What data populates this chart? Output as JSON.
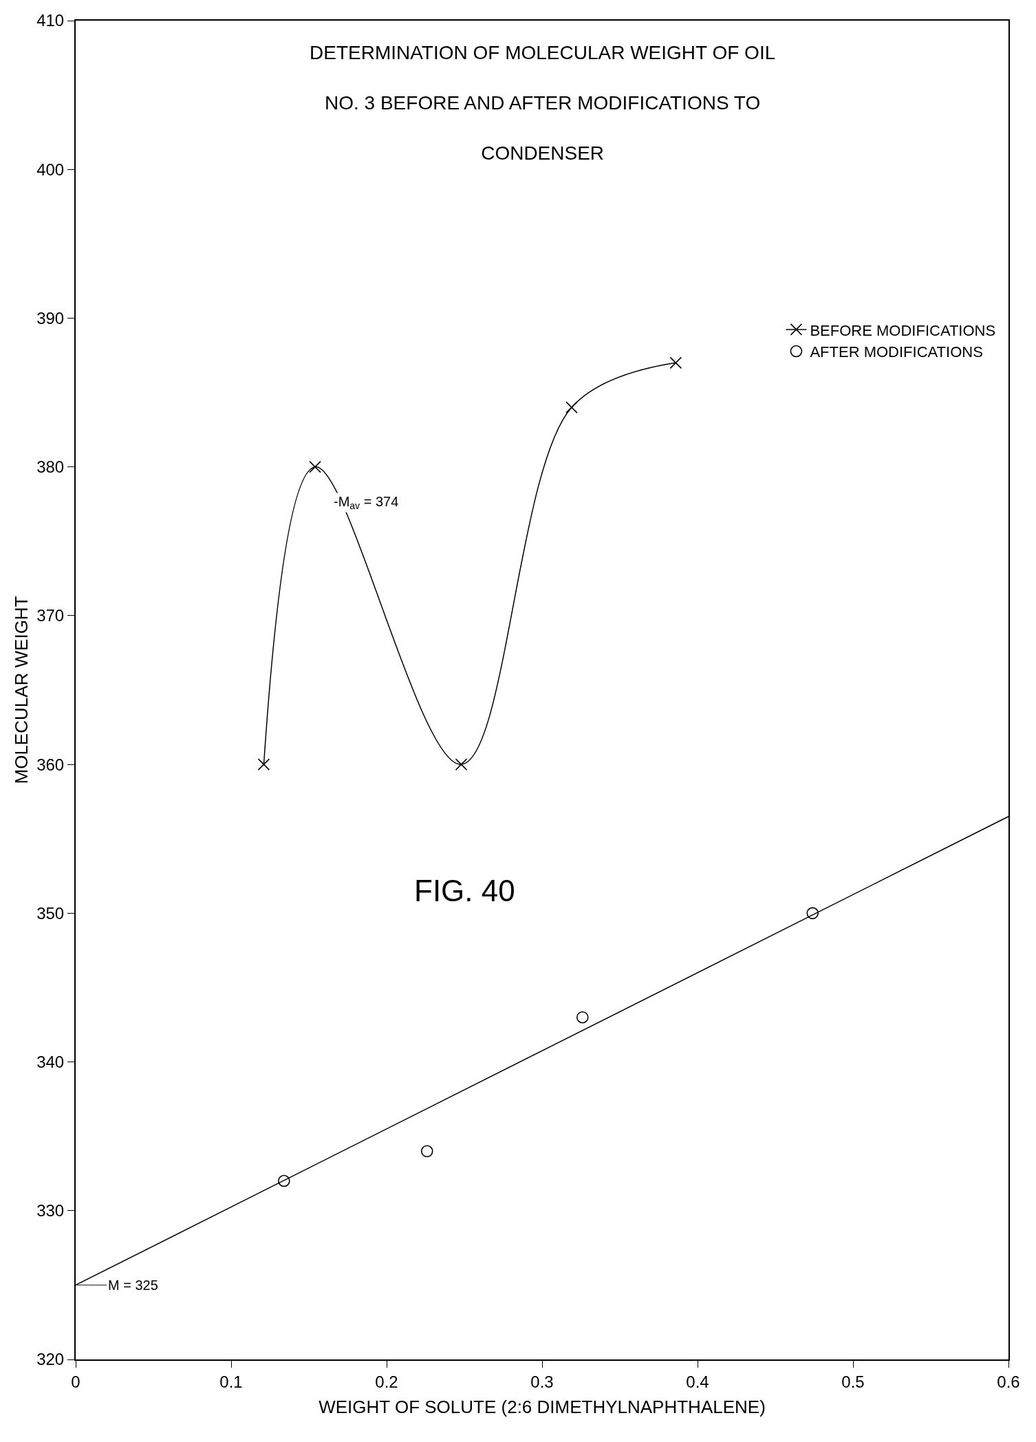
{
  "chart_data": {
    "type": "scatter",
    "title": "DETERMINATION OF MOLECULAR WEIGHT OF OIL NO. 3 BEFORE AND AFTER MODIFICATIONS TO CONDENSER",
    "xlabel": "WEIGHT OF SOLUTE (2:6 DIMETHYLNAPHTHALENE)",
    "ylabel": "MOLECULAR WEIGHT",
    "series": [
      {
        "name": "BEFORE MODIFICATIONS",
        "type": "line",
        "marker": "cross",
        "color": "#000000",
        "x": [
          0.121,
          0.154,
          0.248,
          0.319,
          0.386
        ],
        "values": [
          360,
          380,
          360,
          384,
          387
        ]
      },
      {
        "name": "AFTER MODIFICATIONS",
        "marker": "circle",
        "color": "#000000",
        "x": [
          0.134,
          0.226,
          0.326,
          0.474
        ],
        "values": [
          332,
          334,
          343,
          350
        ]
      },
      {
        "type": "line",
        "marker": "none",
        "color": "#000000",
        "x": [
          0,
          0.6
        ],
        "values": [
          325,
          356.5
        ]
      }
    ],
    "annotations": [
      "-M$_{av}$ = 374",
      {
        "text": "M = 325",
        "x": 0,
        "y": 325
      },
      "FIG. 40"
    ],
    "xlim": [
      0,
      0.6
    ],
    "xticks": [
      0,
      0.1,
      0.2,
      0.3,
      0.4,
      0.5,
      0.6
    ],
    "ylim": [
      320,
      410
    ],
    "yticks": [
      320,
      330,
      340,
      350,
      360,
      370,
      380,
      390,
      400,
      410
    ],
    "legend": "top right"
  }
}
